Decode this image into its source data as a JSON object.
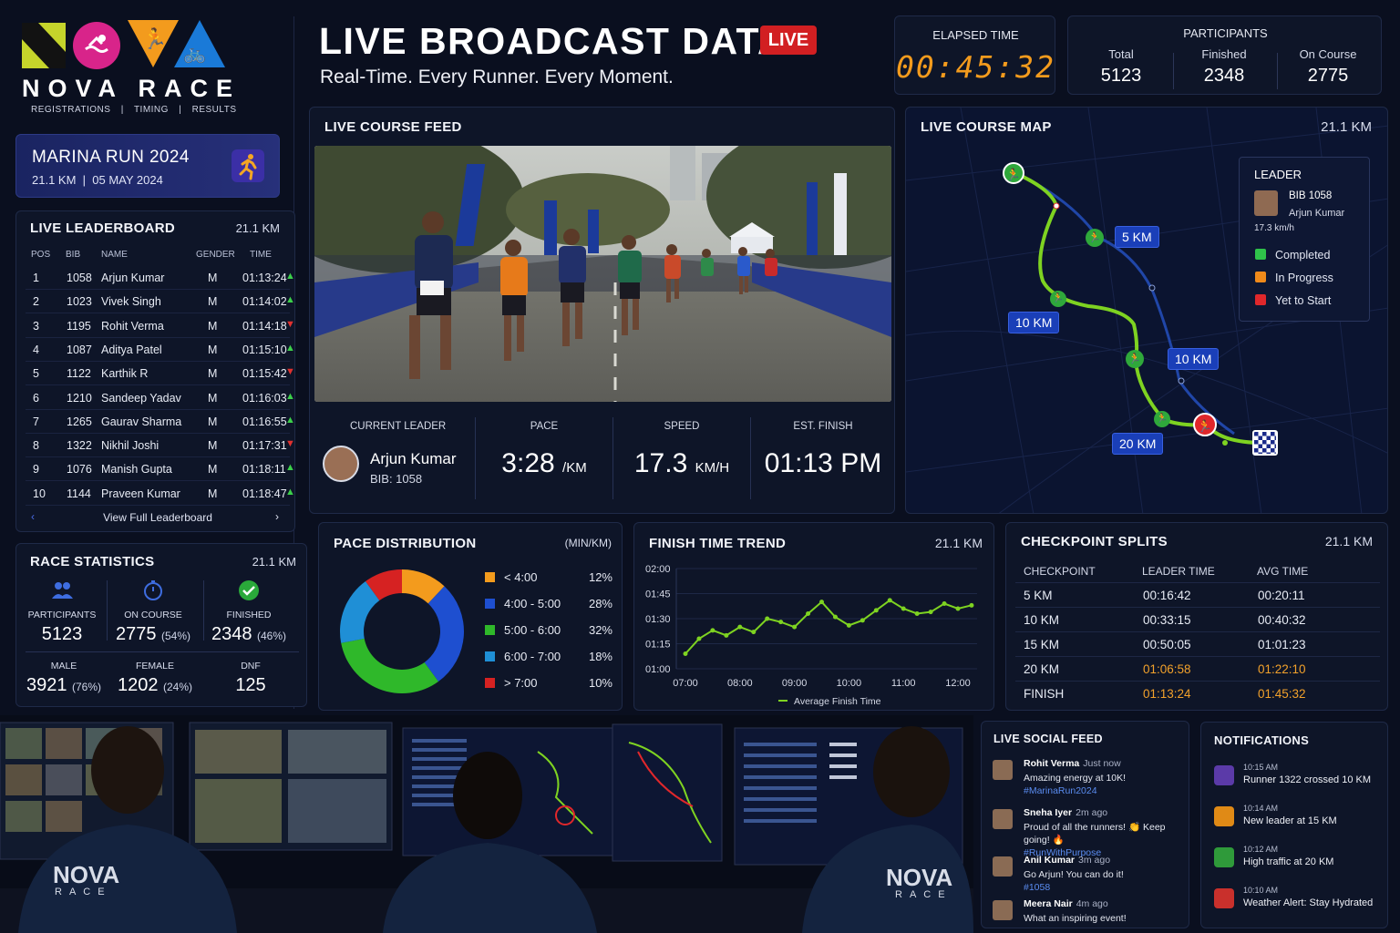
{
  "brand": {
    "name": "NOVA RACE",
    "links": [
      "REGISTRATIONS",
      "|",
      "TIMING",
      "|",
      "RESULTS"
    ],
    "logo_colors": [
      "#c5d42b",
      "#d8248a",
      "#f39b1d",
      "#1a7ad8"
    ]
  },
  "event": {
    "name": "MARINA RUN 2024",
    "distance": "21.1 KM",
    "date": "05 MAY 2024",
    "sep": "|"
  },
  "header": {
    "title": "LIVE BROADCAST DATA",
    "live_badge": "LIVE",
    "subtitle": "Real-Time. Every Runner. Every Moment."
  },
  "elapsed": {
    "label": "ELAPSED TIME",
    "value": "00:45:32"
  },
  "participants": {
    "title": "PARTICIPANTS",
    "total_label": "Total",
    "total": "5123",
    "finished_label": "Finished",
    "finished": "2348",
    "on_course_label": "On Course",
    "on_course": "2775"
  },
  "leaderboard": {
    "title": "LIVE LEADERBOARD",
    "distance": "21.1 KM",
    "headers": [
      "POS",
      "BIB",
      "NAME",
      "GENDER",
      "TIME"
    ],
    "rows": [
      {
        "pos": "1",
        "bib": "1058",
        "name": "Arjun Kumar",
        "gender": "M",
        "time": "01:13:24",
        "trend": "up"
      },
      {
        "pos": "2",
        "bib": "1023",
        "name": "Vivek Singh",
        "gender": "M",
        "time": "01:14:02",
        "trend": "up"
      },
      {
        "pos": "3",
        "bib": "1195",
        "name": "Rohit Verma",
        "gender": "M",
        "time": "01:14:18",
        "trend": "down"
      },
      {
        "pos": "4",
        "bib": "1087",
        "name": "Aditya Patel",
        "gender": "M",
        "time": "01:15:10",
        "trend": "up"
      },
      {
        "pos": "5",
        "bib": "1122",
        "name": "Karthik R",
        "gender": "M",
        "time": "01:15:42",
        "trend": "down"
      },
      {
        "pos": "6",
        "bib": "1210",
        "name": "Sandeep Yadav",
        "gender": "M",
        "time": "01:16:03",
        "trend": "up"
      },
      {
        "pos": "7",
        "bib": "1265",
        "name": "Gaurav Sharma",
        "gender": "M",
        "time": "01:16:55",
        "trend": "up"
      },
      {
        "pos": "8",
        "bib": "1322",
        "name": "Nikhil Joshi",
        "gender": "M",
        "time": "01:17:31",
        "trend": "down"
      },
      {
        "pos": "9",
        "bib": "1076",
        "name": "Manish Gupta",
        "gender": "M",
        "time": "01:18:11",
        "trend": "up"
      },
      {
        "pos": "10",
        "bib": "1144",
        "name": "Praveen Kumar",
        "gender": "M",
        "time": "01:18:47",
        "trend": "up"
      }
    ],
    "footer": "View Full Leaderboard",
    "prev_icon": "chevron-left-icon",
    "next_icon": "chevron-right-icon"
  },
  "race_stats": {
    "title": "RACE STATISTICS",
    "distance": "21.1 KM",
    "participants_label": "PARTICIPANTS",
    "participants": "5123",
    "on_course_label": "ON COURSE",
    "on_course": "2775",
    "on_course_pct": "(54%)",
    "finished_label": "FINISHED",
    "finished": "2348",
    "finished_pct": "(46%)",
    "male_label": "MALE",
    "male": "3921",
    "male_pct": "(76%)",
    "female_label": "FEMALE",
    "female": "1202",
    "female_pct": "(24%)",
    "dnf_label": "DNF",
    "dnf": "125"
  },
  "live_feed": {
    "title": "LIVE COURSE FEED",
    "current_leader_label": "CURRENT LEADER",
    "leader_name": "Arjun Kumar",
    "leader_bib": "BIB: 1058",
    "pace_label": "PACE",
    "pace": "3:28",
    "pace_unit": "/KM",
    "speed_label": "SPEED",
    "speed": "17.3",
    "speed_unit": "KM/H",
    "finish_label": "EST. FINISH",
    "finish": "01:13 PM"
  },
  "course_map": {
    "title": "LIVE COURSE MAP",
    "distance": "21.1 KM",
    "legend_title": "LEADER",
    "leader_bib": "BIB 1058",
    "leader_name": "Arjun Kumar",
    "leader_speed": "17.3 km/h",
    "legend": [
      {
        "label": "Completed",
        "color": "#2fc24a"
      },
      {
        "label": "In Progress",
        "color": "#f08a1a"
      },
      {
        "label": "Yet to Start",
        "color": "#e0272b"
      }
    ],
    "tags": [
      "5 KM",
      "10 KM",
      "10 KM",
      "20 KM"
    ]
  },
  "pace_distribution": {
    "title": "PACE DISTRIBUTION",
    "unit": "(MIN/KM)",
    "items": [
      {
        "label": "< 4:00",
        "pct": "12%",
        "value": 12,
        "color": "#f39b1d"
      },
      {
        "label": "4:00 - 5:00",
        "pct": "28%",
        "value": 28,
        "color": "#1e4fd0"
      },
      {
        "label": "5:00 - 6:00",
        "pct": "32%",
        "value": 32,
        "color": "#2fb82a"
      },
      {
        "label": "6:00 - 7:00",
        "pct": "18%",
        "value": 18,
        "color": "#1f8fd6"
      },
      {
        "label": "> 7:00",
        "pct": "10%",
        "value": 10,
        "color": "#d62222"
      }
    ]
  },
  "chart_data": {
    "type": "line",
    "title": "FINISH TIME TREND",
    "distance": "21.1 KM",
    "x_ticks": [
      "07:00",
      "08:00",
      "09:00",
      "10:00",
      "11:00",
      "12:00"
    ],
    "y_ticks": [
      "02:00",
      "01:45",
      "01:30",
      "01:15",
      "01:00"
    ],
    "ylim": [
      "01:00",
      "02:00"
    ],
    "legend": "Average Finish Time",
    "series": [
      {
        "name": "Average Finish Time",
        "color": "#7ed321",
        "x": [
          "07:00",
          "07:15",
          "07:30",
          "07:45",
          "08:00",
          "08:15",
          "08:30",
          "08:45",
          "09:00",
          "09:15",
          "09:30",
          "09:45",
          "10:00",
          "10:15",
          "10:30",
          "10:45",
          "11:00",
          "11:15",
          "11:30",
          "11:45",
          "12:00",
          "12:15"
        ],
        "y_minutes": [
          69,
          78,
          83,
          80,
          85,
          82,
          90,
          88,
          85,
          93,
          100,
          91,
          86,
          89,
          95,
          101,
          96,
          93,
          94,
          99,
          96,
          98
        ]
      }
    ]
  },
  "splits": {
    "title": "CHECKPOINT SPLITS",
    "distance": "21.1 KM",
    "headers": [
      "CHECKPOINT",
      "LEADER TIME",
      "AVG TIME"
    ],
    "rows": [
      {
        "cp": "5 KM",
        "leader": "00:16:42",
        "avg": "00:20:11",
        "highlight": false
      },
      {
        "cp": "10 KM",
        "leader": "00:33:15",
        "avg": "00:40:32",
        "highlight": false
      },
      {
        "cp": "15 KM",
        "leader": "00:50:05",
        "avg": "01:01:23",
        "highlight": false
      },
      {
        "cp": "20 KM",
        "leader": "01:06:58",
        "avg": "01:22:10",
        "highlight": true
      },
      {
        "cp": "FINISH",
        "leader": "01:13:24",
        "avg": "01:45:32",
        "highlight": true
      }
    ]
  },
  "social": {
    "title": "LIVE SOCIAL FEED",
    "posts": [
      {
        "name": "Rohit Verma",
        "ago": "Just now",
        "text": "Amazing energy at 10K!",
        "tag": "#MarinaRun2024"
      },
      {
        "name": "Sneha Iyer",
        "ago": "2m ago",
        "text": "Proud of all the runners! 👏 Keep going! 🔥",
        "tag": "#RunWithPurpose"
      },
      {
        "name": "Anil Kumar",
        "ago": "3m ago",
        "text": "Go Arjun! You can do it!",
        "tag": "#1058"
      },
      {
        "name": "Meera Nair",
        "ago": "4m ago",
        "text": "What an inspiring event!",
        "tag": ""
      }
    ]
  },
  "notifications": {
    "title": "NOTIFICATIONS",
    "items": [
      {
        "time": "10:15 AM",
        "text": "Runner 1322 crossed 10 KM",
        "color": "#5b3aa8",
        "icon": "runner-icon"
      },
      {
        "time": "10:14 AM",
        "text": "New leader at 15 KM",
        "color": "#e08a16",
        "icon": "trophy-icon"
      },
      {
        "time": "10:12 AM",
        "text": "High traffic at 20 KM",
        "color": "#2f9a3a",
        "icon": "person-icon"
      },
      {
        "time": "10:10 AM",
        "text": "Weather Alert: Stay Hydrated",
        "color": "#c9302c",
        "icon": "alert-icon"
      }
    ]
  },
  "ops_photo": {
    "jersey_text_1": "NOVA",
    "jersey_sub_1": "RACE",
    "jersey_text_2": "NOVA",
    "jersey_sub_2": "RACE"
  }
}
